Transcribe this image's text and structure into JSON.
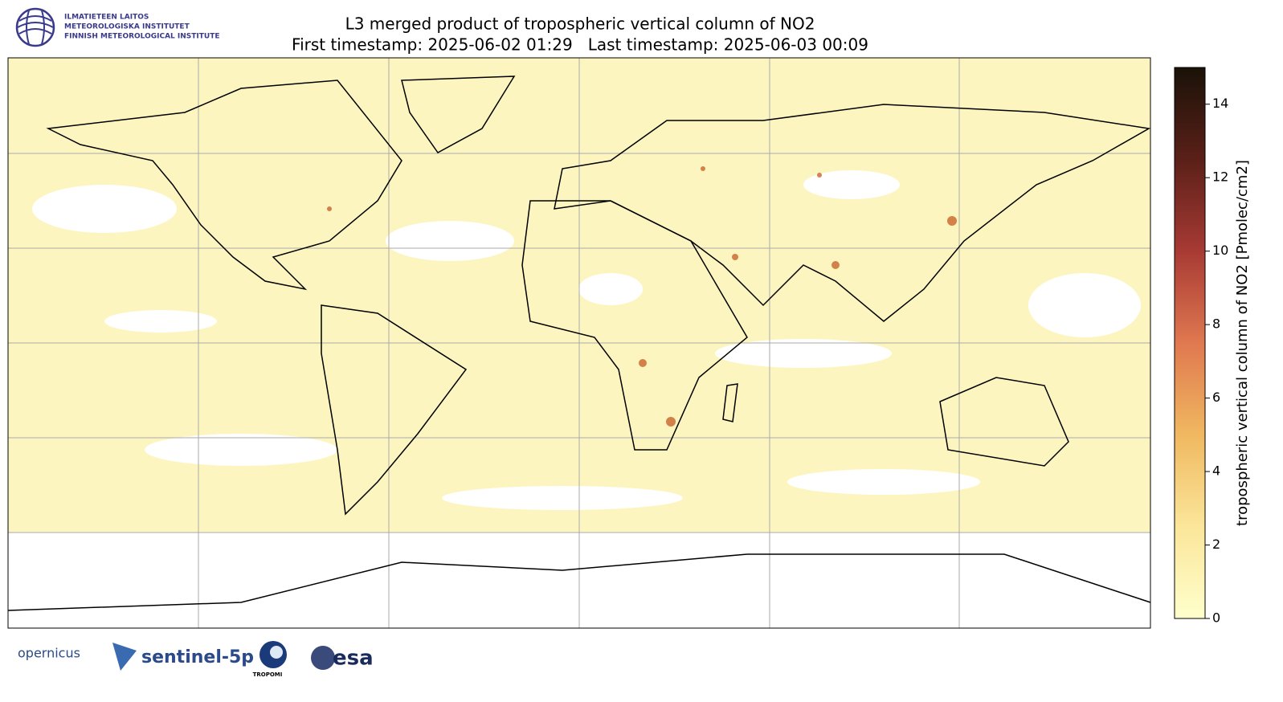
{
  "header": {
    "institute_lines": [
      "ILMATIETEEN LAITOS",
      "METEOROLOGISKA INSTITUTET",
      "FINNISH METEOROLOGICAL INSTITUTE"
    ],
    "title": "L3 merged product of tropospheric vertical column of NO2",
    "subtitle": "First timestamp: 2025-06-02 01:29   Last timestamp: 2025-06-03 00:09"
  },
  "colorbar": {
    "label": "tropospheric vertical column of NO2 [Pmolec/cm2]",
    "lim": [
      0,
      15
    ],
    "ticks": [
      0,
      2,
      4,
      6,
      8,
      10,
      12,
      14
    ],
    "colors": [
      "#ffffcc",
      "#fbe69a",
      "#f0b860",
      "#e07850",
      "#a83a34",
      "#5a2018",
      "#1a1208"
    ]
  },
  "footer": {
    "logos": [
      "opernicus",
      "sentinel-5p",
      "TROPOMI",
      "esa"
    ]
  }
}
